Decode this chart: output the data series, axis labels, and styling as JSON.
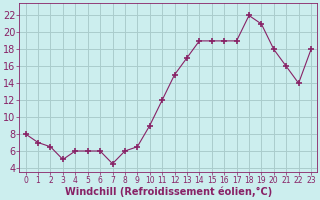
{
  "x": [
    0,
    1,
    2,
    3,
    4,
    5,
    6,
    7,
    8,
    9,
    10,
    11,
    12,
    13,
    14,
    15,
    16,
    17,
    18,
    19,
    20,
    21,
    22,
    23
  ],
  "y": [
    8,
    7,
    6.5,
    5,
    6,
    6,
    6,
    4.5,
    6,
    6.5,
    9,
    12,
    15,
    17,
    19,
    19,
    19,
    19,
    22,
    21,
    18,
    16,
    14,
    18
  ],
  "line_color": "#882266",
  "marker": "+",
  "marker_size": 4,
  "bg_color": "#cceeee",
  "grid_color": "#aacccc",
  "xlabel": "Windchill (Refroidissement éolien,°C)",
  "xlabel_fontsize": 7,
  "yticks": [
    4,
    6,
    8,
    10,
    12,
    14,
    16,
    18,
    20,
    22
  ],
  "xticks": [
    0,
    1,
    2,
    3,
    4,
    5,
    6,
    7,
    8,
    9,
    10,
    11,
    12,
    13,
    14,
    15,
    16,
    17,
    18,
    19,
    20,
    21,
    22,
    23
  ],
  "ylim": [
    3.5,
    23.5
  ],
  "xlim": [
    -0.5,
    23.5
  ],
  "ytick_fontsize": 7,
  "xtick_fontsize": 5.5
}
